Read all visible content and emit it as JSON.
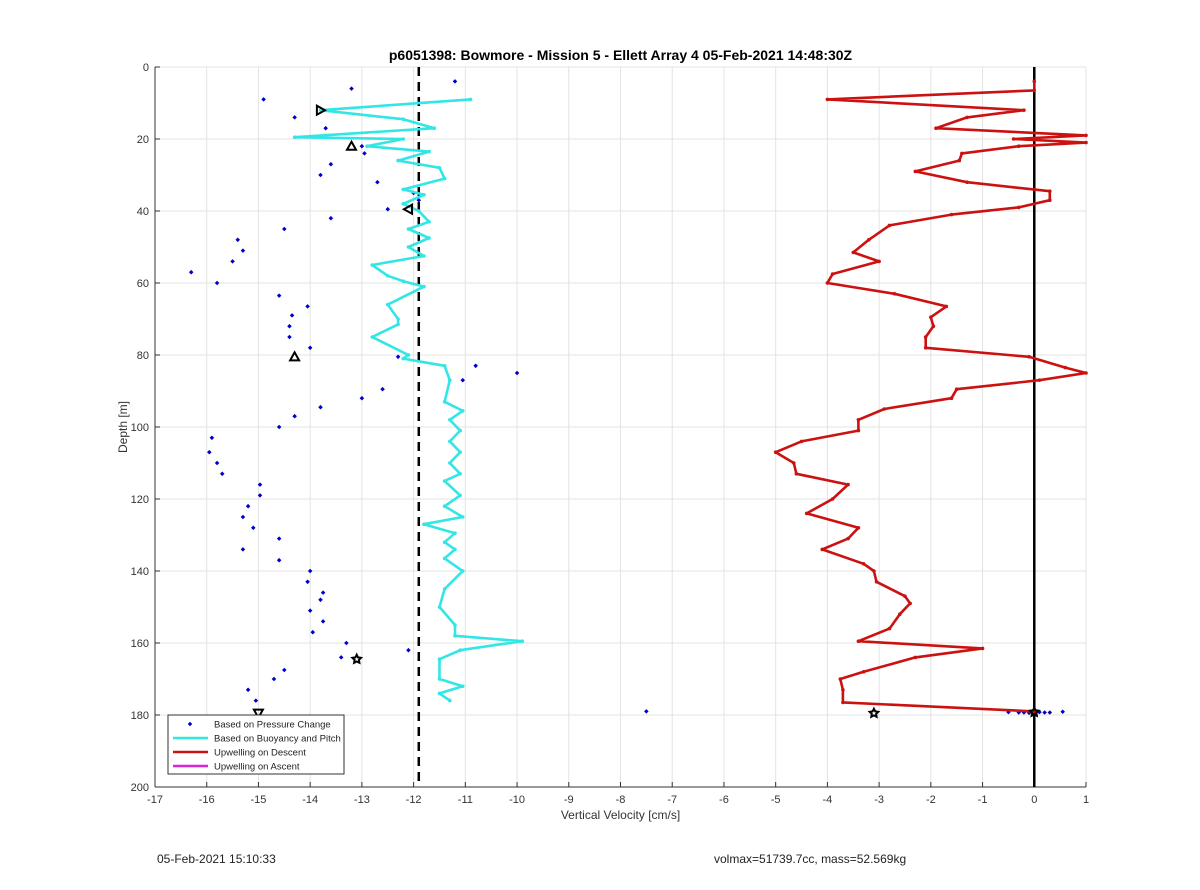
{
  "footer": {
    "timestamp": "05-Feb-2021 15:10:33",
    "stats": "volmax=51739.7cc, mass=52.569kg"
  },
  "colors": {
    "pressure": "#0000cc",
    "buoyancy": "#33e6e6",
    "descent": "#cc1111",
    "ascent": "#dd22dd",
    "reference_line": "#000000",
    "grid": "#e3e3e3"
  },
  "chart_data": {
    "type": "line",
    "title": "p6051398: Bowmore - Mission 5 - Ellett Array 4 05-Feb-2021 14:48:30Z",
    "xlabel": "Vertical Velocity [cm/s]",
    "ylabel": "Depth [m]",
    "xlim": [
      -17,
      1
    ],
    "ylim": [
      0,
      200
    ],
    "y_reversed": true,
    "grid": true,
    "xticks": [
      "-17",
      "-16",
      "-15",
      "-14",
      "-13",
      "-12",
      "-11",
      "-10",
      "-9",
      "-8",
      "-7",
      "-6",
      "-5",
      "-4",
      "-3",
      "-2",
      "-1",
      "0",
      "1"
    ],
    "yticks": [
      "0",
      "20",
      "40",
      "60",
      "80",
      "100",
      "120",
      "140",
      "160",
      "180",
      "200"
    ],
    "legend_position": "bottom-left",
    "legend": [
      {
        "label": "Based on Pressure Change",
        "style": "dot"
      },
      {
        "label": "Based on Buoyancy and Pitch",
        "style": "line"
      },
      {
        "label": "Upwelling on Descent",
        "style": "line"
      },
      {
        "label": "Upwelling on Ascent",
        "style": "line"
      }
    ],
    "reference_lines": [
      {
        "x": -11.9,
        "style": "dashed"
      },
      {
        "x": 0,
        "style": "solid"
      }
    ],
    "series": [
      {
        "name": "Based on Pressure Change",
        "kind": "scatter",
        "points": [
          [
            -11.2,
            4
          ],
          [
            -13.2,
            6
          ],
          [
            -14.9,
            9
          ],
          [
            -14.3,
            14
          ],
          [
            -13.7,
            17
          ],
          [
            -13,
            22
          ],
          [
            -12.95,
            24
          ],
          [
            -13.6,
            27
          ],
          [
            -13.8,
            30
          ],
          [
            -12.7,
            32
          ],
          [
            -12,
            35
          ],
          [
            -11.9,
            37
          ],
          [
            -12.5,
            39.5
          ],
          [
            -13.6,
            42
          ],
          [
            -14.5,
            45
          ],
          [
            -15.4,
            48
          ],
          [
            -15.3,
            51
          ],
          [
            -15.5,
            54
          ],
          [
            -16.3,
            57
          ],
          [
            -15.8,
            60
          ],
          [
            -14.6,
            63.5
          ],
          [
            -14.05,
            66.5
          ],
          [
            -14.35,
            69
          ],
          [
            -14.4,
            72
          ],
          [
            -14.4,
            75
          ],
          [
            -14,
            78
          ],
          [
            -12.3,
            80.5
          ],
          [
            -10.8,
            83
          ],
          [
            -10,
            85
          ],
          [
            -11.05,
            87
          ],
          [
            -12.6,
            89.5
          ],
          [
            -13,
            92
          ],
          [
            -13.8,
            94.5
          ],
          [
            -14.3,
            97
          ],
          [
            -14.6,
            100
          ],
          [
            -15.9,
            103
          ],
          [
            -15.95,
            107
          ],
          [
            -15.8,
            110
          ],
          [
            -15.7,
            113
          ],
          [
            -14.97,
            116
          ],
          [
            -14.97,
            119
          ],
          [
            -15.2,
            122
          ],
          [
            -15.3,
            125
          ],
          [
            -15.1,
            128
          ],
          [
            -14.6,
            131
          ],
          [
            -15.3,
            134
          ],
          [
            -14.6,
            137
          ],
          [
            -14,
            140
          ],
          [
            -14.05,
            143
          ],
          [
            -13.75,
            146
          ],
          [
            -13.8,
            148
          ],
          [
            -14,
            151
          ],
          [
            -13.75,
            154
          ],
          [
            -13.95,
            157
          ],
          [
            -13.3,
            160
          ],
          [
            -12.1,
            162
          ],
          [
            -13.4,
            164
          ],
          [
            -14.5,
            167.5
          ],
          [
            -14.7,
            170
          ],
          [
            -15.2,
            173
          ],
          [
            -15.05,
            176
          ],
          [
            -7.5,
            179
          ],
          [
            -0.5,
            179.2
          ],
          [
            -0.3,
            179.3
          ],
          [
            -0.2,
            179.3
          ],
          [
            -0.1,
            179.4
          ],
          [
            0.1,
            179.2
          ],
          [
            0.2,
            179.3
          ],
          [
            0.3,
            179.3
          ],
          [
            0.55,
            179.1
          ]
        ]
      },
      {
        "name": "Based on Buoyancy and Pitch",
        "kind": "line",
        "points": [
          [
            -10.9,
            9
          ],
          [
            -13.8,
            12
          ],
          [
            -12.2,
            14.5
          ],
          [
            -11.6,
            17
          ],
          [
            -14.3,
            19.5
          ],
          [
            -12.2,
            20
          ],
          [
            -12.9,
            22
          ],
          [
            -11.7,
            23.5
          ],
          [
            -12.3,
            26
          ],
          [
            -11.5,
            28
          ],
          [
            -11.4,
            31
          ],
          [
            -12.2,
            34
          ],
          [
            -11.8,
            35.5
          ],
          [
            -12.2,
            38
          ],
          [
            -11.9,
            40
          ],
          [
            -11.7,
            43
          ],
          [
            -12.1,
            45
          ],
          [
            -11.7,
            47.5
          ],
          [
            -12.1,
            50
          ],
          [
            -11.8,
            52.5
          ],
          [
            -12.8,
            55
          ],
          [
            -12.5,
            58
          ],
          [
            -12.2,
            59.5
          ],
          [
            -11.8,
            61
          ],
          [
            -12.5,
            66
          ],
          [
            -12.3,
            70
          ],
          [
            -12.3,
            71.5
          ],
          [
            -12.8,
            75
          ],
          [
            -12.1,
            80
          ],
          [
            -12.2,
            81
          ],
          [
            -11.4,
            83
          ],
          [
            -11.3,
            87
          ],
          [
            -11.4,
            93
          ],
          [
            -11.05,
            95.5
          ],
          [
            -11.3,
            98
          ],
          [
            -11.1,
            101
          ],
          [
            -11.3,
            104
          ],
          [
            -11.1,
            107
          ],
          [
            -11.3,
            110
          ],
          [
            -11.1,
            113
          ],
          [
            -11.4,
            115
          ],
          [
            -11.1,
            119
          ],
          [
            -11.4,
            122
          ],
          [
            -11.05,
            125
          ],
          [
            -11.8,
            127
          ],
          [
            -11.2,
            129.5
          ],
          [
            -11.4,
            132
          ],
          [
            -11.2,
            134
          ],
          [
            -11.4,
            136.5
          ],
          [
            -11.05,
            140
          ],
          [
            -11.4,
            145
          ],
          [
            -11.5,
            150
          ],
          [
            -11.2,
            155
          ],
          [
            -11.2,
            158
          ],
          [
            -9.9,
            159.5
          ],
          [
            -11.1,
            162
          ],
          [
            -11.5,
            164.5
          ],
          [
            -11.5,
            170
          ],
          [
            -11.05,
            172
          ],
          [
            -11.5,
            174
          ],
          [
            -11.3,
            176
          ]
        ]
      },
      {
        "name": "Upwelling on Descent",
        "kind": "line",
        "points": [
          [
            0,
            4
          ],
          [
            0,
            6.5
          ],
          [
            -4,
            9
          ],
          [
            -0.2,
            12
          ],
          [
            -1.3,
            14
          ],
          [
            -1.9,
            17
          ],
          [
            1,
            19
          ],
          [
            -0.4,
            20
          ],
          [
            1,
            21
          ],
          [
            -0.3,
            22
          ],
          [
            -1.4,
            24
          ],
          [
            -1.45,
            26
          ],
          [
            -2.3,
            29
          ],
          [
            -1.3,
            32
          ],
          [
            0.3,
            34.5
          ],
          [
            0.3,
            37
          ],
          [
            -0.3,
            39
          ],
          [
            -1.6,
            41
          ],
          [
            -2.8,
            44
          ],
          [
            -3.2,
            48
          ],
          [
            -3.5,
            51.5
          ],
          [
            -3,
            54
          ],
          [
            -3.9,
            57.5
          ],
          [
            -4,
            60
          ],
          [
            -2.7,
            63
          ],
          [
            -1.7,
            66.5
          ],
          [
            -2,
            69.5
          ],
          [
            -1.95,
            72
          ],
          [
            -2.1,
            75
          ],
          [
            -2.1,
            78
          ],
          [
            -0.1,
            80.5
          ],
          [
            0.6,
            83.5
          ],
          [
            1,
            85
          ],
          [
            0.1,
            87
          ],
          [
            -1.5,
            89.5
          ],
          [
            -1.6,
            92
          ],
          [
            -2.9,
            95
          ],
          [
            -3.4,
            98
          ],
          [
            -3.4,
            101
          ],
          [
            -4.5,
            104
          ],
          [
            -5,
            107
          ],
          [
            -4.65,
            110
          ],
          [
            -4.6,
            113
          ],
          [
            -3.6,
            116
          ],
          [
            -3.9,
            120
          ],
          [
            -4.4,
            124
          ],
          [
            -3.4,
            128
          ],
          [
            -3.6,
            131
          ],
          [
            -4.1,
            134
          ],
          [
            -3.3,
            138
          ],
          [
            -3.1,
            140
          ],
          [
            -3.05,
            143
          ],
          [
            -2.5,
            147
          ],
          [
            -2.4,
            149
          ],
          [
            -2.6,
            152
          ],
          [
            -2.8,
            156
          ],
          [
            -3.4,
            159.5
          ],
          [
            -1,
            161.5
          ],
          [
            -2.3,
            164
          ],
          [
            -3.3,
            168
          ],
          [
            -3.75,
            170
          ],
          [
            -3.7,
            173
          ],
          [
            -3.7,
            176.5
          ],
          [
            0,
            179
          ]
        ]
      },
      {
        "name": "Upwelling on Ascent",
        "kind": "line",
        "points": []
      }
    ],
    "triangle_markers": [
      {
        "x": -13.8,
        "y": 12,
        "dir": "right"
      },
      {
        "x": -13.2,
        "y": 22,
        "dir": "up"
      },
      {
        "x": -12.1,
        "y": 39.5,
        "dir": "left"
      },
      {
        "x": -14.3,
        "y": 80.5,
        "dir": "up"
      },
      {
        "x": -13.1,
        "y": 164.5,
        "dir": "star"
      },
      {
        "x": -15,
        "y": 179.5,
        "dir": "down"
      },
      {
        "x": -3.1,
        "y": 179.5,
        "dir": "star"
      },
      {
        "x": 0,
        "y": 179.2,
        "dir": "star"
      }
    ]
  }
}
